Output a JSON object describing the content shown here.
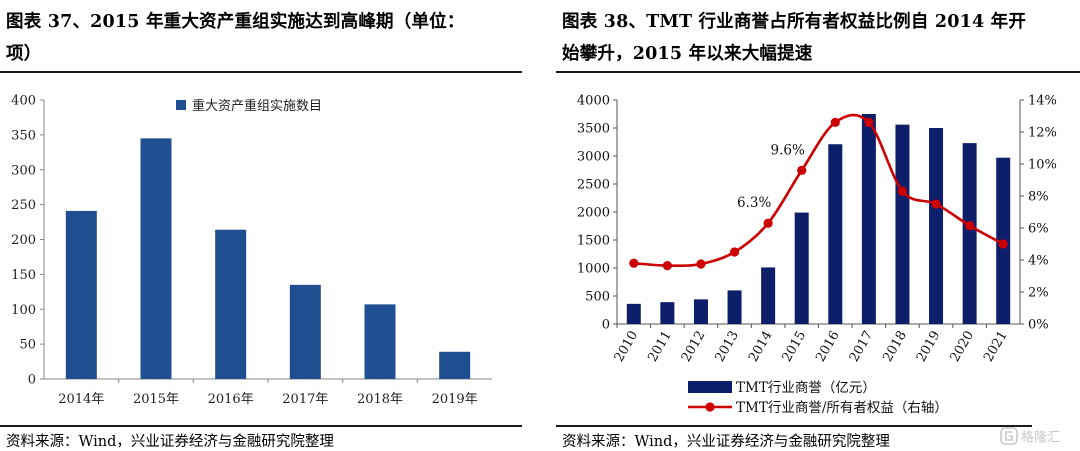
{
  "left": {
    "title_line1": "图表 37、2015 年重大资产重组实施达到高峰期（单位：",
    "title_line2": "项）",
    "source": "资料来源：Wind，兴业证券经济与金融研究院整理"
  },
  "right": {
    "title_line1": "图表 38、TMT 行业商誉占所有者权益比例自 2014 年开",
    "title_line2": "始攀升，2015 年以来大幅提速",
    "source": "资料来源：Wind，兴业证券经济与金融研究院整理"
  },
  "chart_data": [
    {
      "type": "bar",
      "categories": [
        "2014年",
        "2015年",
        "2016年",
        "2017年",
        "2018年",
        "2019年"
      ],
      "series": [
        {
          "name": "重大资产重组实施数目",
          "values": [
            241,
            345,
            214,
            135,
            107,
            39
          ],
          "color": "#1f4e91"
        }
      ],
      "ylim": [
        0,
        400
      ],
      "yticks": [
        0,
        50,
        100,
        150,
        200,
        250,
        300,
        350,
        400
      ],
      "legend_position": "top-center",
      "grid": false
    },
    {
      "type": "bar+line",
      "categories": [
        "2010",
        "2011",
        "2012",
        "2013",
        "2014",
        "2015",
        "2016",
        "2017",
        "2018",
        "2019",
        "2020",
        "2021"
      ],
      "series": [
        {
          "name": "TMT行业商誉（亿元）",
          "type": "bar",
          "axis": "left",
          "values": [
            360,
            390,
            440,
            600,
            1010,
            1990,
            3210,
            3750,
            3560,
            3500,
            3230,
            2970
          ],
          "color": "#0d1e6b"
        },
        {
          "name": "TMT行业商誉/所有者权益（右轴）",
          "type": "line",
          "axis": "right",
          "values": [
            3.8,
            3.65,
            3.75,
            4.5,
            6.3,
            9.6,
            12.6,
            12.6,
            8.3,
            7.5,
            6.15,
            5.0
          ],
          "color": "#cc0000"
        }
      ],
      "ylim_left": [
        0,
        4000
      ],
      "yticks_left": [
        0,
        500,
        1000,
        1500,
        2000,
        2500,
        3000,
        3500,
        4000
      ],
      "ylim_right": [
        0,
        14
      ],
      "yticks_right": [
        "0%",
        "2%",
        "4%",
        "6%",
        "8%",
        "10%",
        "12%",
        "14%"
      ],
      "annotations": [
        {
          "text": "6.3%",
          "category": "2014"
        },
        {
          "text": "9.6%",
          "category": "2015"
        }
      ],
      "legend_position": "bottom",
      "grid": false
    }
  ],
  "watermark": {
    "text": "格隆汇"
  }
}
